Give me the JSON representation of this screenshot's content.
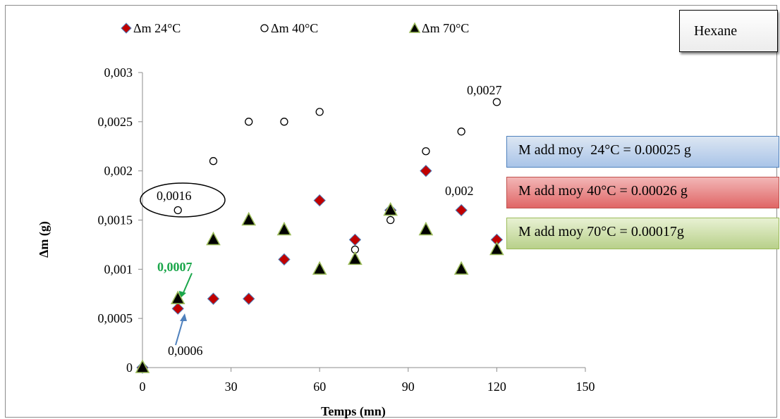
{
  "labels": {
    "solvent": "Hexane"
  },
  "info_boxes": [
    "M add moy  24°C = 0.00025 g",
    "M add moy 40°C = 0.00026 g",
    "M add moy 70°C = 0.00017g"
  ],
  "annotations": {
    "l1": "0,0016",
    "l2": "0,0027",
    "l3": "0,002",
    "l4": "0,0007",
    "l5": "0,0006"
  },
  "chart_data": {
    "type": "scatter",
    "xlabel": "Temps (mn)",
    "ylabel": "Δm (g)",
    "xlim": [
      0,
      150
    ],
    "ylim": [
      0,
      0.003
    ],
    "xticks": [
      0,
      30,
      60,
      90,
      120,
      150
    ],
    "xtick_labels": [
      "0",
      "30",
      "60",
      "90",
      "120",
      "150"
    ],
    "yticks": [
      0,
      0.0005,
      0.001,
      0.0015,
      0.002,
      0.0025,
      0.003
    ],
    "ytick_labels": [
      "0",
      "0,0005",
      "0,001",
      "0,0015",
      "0,002",
      "0,0025",
      "0,003"
    ],
    "legend_position": "top",
    "series": [
      {
        "name": "Δm 24°C",
        "marker": "diamond",
        "color": "#c00000",
        "edge": "#4f81bd",
        "x": [
          0,
          12,
          24,
          36,
          48,
          60,
          72,
          84,
          96,
          108,
          120
        ],
        "y": [
          0,
          0.0006,
          0.0007,
          0.0007,
          0.0011,
          0.0017,
          0.0013,
          0.0016,
          0.002,
          0.0016,
          0.0013
        ]
      },
      {
        "name": "Δm  40°C",
        "marker": "circle",
        "color": "#ffffff",
        "edge": "#000000",
        "x": [
          0,
          12,
          24,
          36,
          48,
          60,
          72,
          84,
          96,
          108,
          120
        ],
        "y": [
          0,
          0.0016,
          0.0021,
          0.0025,
          0.0025,
          0.0026,
          0.0012,
          0.0015,
          0.0022,
          0.0024,
          0.0027
        ]
      },
      {
        "name": "Δm   70°C",
        "marker": "triangle",
        "color": "#000000",
        "edge": "#9bbb59",
        "x": [
          0,
          12,
          24,
          36,
          48,
          60,
          72,
          84,
          96,
          108,
          120
        ],
        "y": [
          0,
          0.0007,
          0.0013,
          0.0015,
          0.0014,
          0.001,
          0.0011,
          0.0016,
          0.0014,
          0.001,
          0.0012
        ]
      }
    ]
  }
}
